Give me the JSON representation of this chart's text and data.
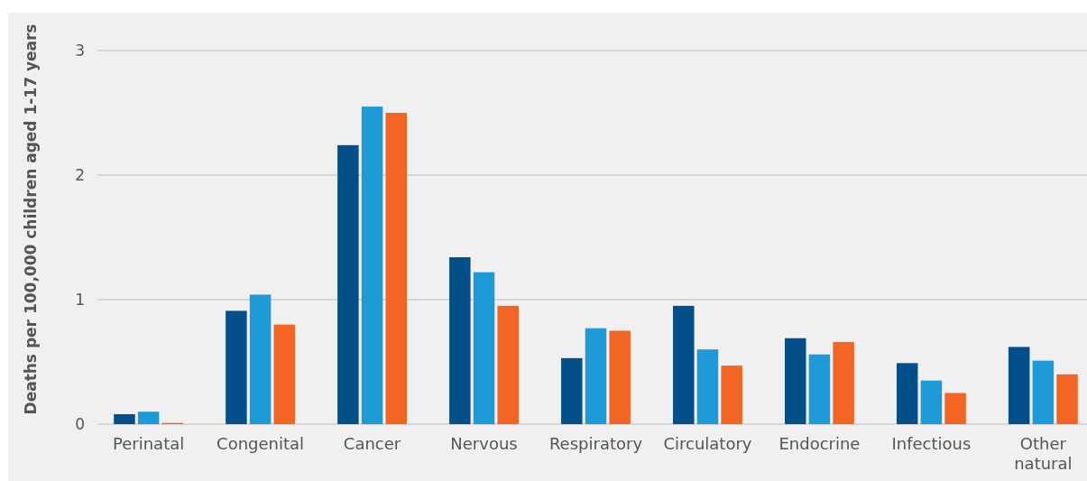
{
  "chart_data": {
    "type": "bar",
    "ylabel": "Deaths per 100,000 children aged 1-17 years",
    "categories": [
      "Perinatal",
      "Congenital",
      "Cancer",
      "Nervous",
      "Respiratory",
      "Circulatory",
      "Endocrine",
      "Infectious",
      "Other natural"
    ],
    "series": [
      {
        "color": "#034f8a",
        "values": [
          0.08,
          0.91,
          2.24,
          1.34,
          0.53,
          0.95,
          0.69,
          0.49,
          0.62
        ]
      },
      {
        "color": "#1e9ad6",
        "values": [
          0.1,
          1.04,
          2.55,
          1.22,
          0.77,
          0.6,
          0.56,
          0.35,
          0.51
        ]
      },
      {
        "color": "#f26522",
        "values": [
          0.01,
          0.8,
          2.5,
          0.95,
          0.75,
          0.47,
          0.66,
          0.25,
          0.4
        ]
      }
    ],
    "ylim": [
      0,
      3
    ],
    "yticks": [
      0,
      1,
      2,
      3
    ],
    "grid": "y"
  }
}
